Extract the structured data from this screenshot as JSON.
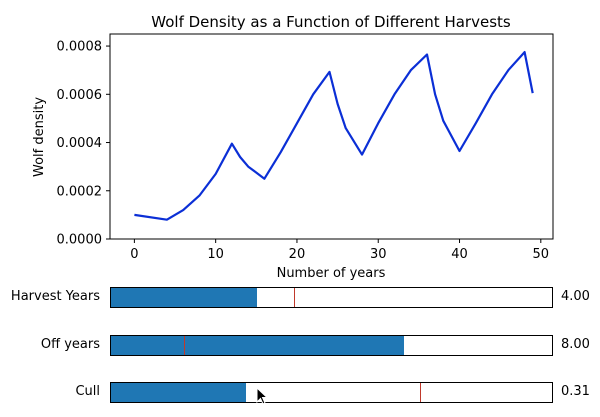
{
  "chart_data": {
    "type": "line",
    "title": "Wolf Density as a Function of Different Harvests",
    "xlabel": "Number of years",
    "ylabel": "Wolf density",
    "xlim": [
      -3,
      51.5
    ],
    "ylim": [
      0,
      0.00085
    ],
    "xticks": [
      "0",
      "10",
      "20",
      "30",
      "40",
      "50"
    ],
    "yticks": [
      "0.0000",
      "0.0002",
      "0.0004",
      "0.0006",
      "0.0008"
    ],
    "series": [
      {
        "color": "#0b2fd6",
        "x": [
          0,
          4,
          6,
          8,
          10,
          12,
          13,
          14,
          16,
          18,
          20,
          22,
          24,
          25,
          26,
          28,
          30,
          32,
          34,
          36,
          37,
          38,
          40,
          42,
          44,
          46,
          48,
          49
        ],
        "y": [
          0.0001,
          8e-05,
          0.00012,
          0.00018,
          0.00027,
          0.000395,
          0.00034,
          0.0003,
          0.00025,
          0.00036,
          0.00048,
          0.0006,
          0.000693,
          0.00056,
          0.00046,
          0.00035,
          0.00048,
          0.0006,
          0.0007,
          0.000765,
          0.0006,
          0.00049,
          0.000365,
          0.00048,
          0.0006,
          0.0007,
          0.000775,
          0.000605
        ]
      }
    ],
    "grid": false
  },
  "sliders": [
    {
      "label": "Harvest Years",
      "fill": 0.33,
      "initial": 0.415,
      "value": "4.00"
    },
    {
      "label": "Off years",
      "fill": 0.665,
      "initial": 0.165,
      "value": "8.00"
    },
    {
      "label": "Cull",
      "fill": 0.305,
      "initial": 0.7,
      "value": "0.31"
    }
  ]
}
